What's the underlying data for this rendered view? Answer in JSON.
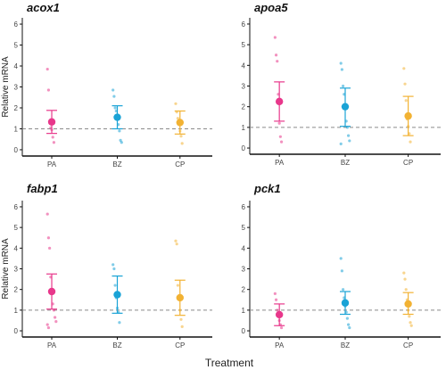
{
  "x_axis_label": "Treatment",
  "colors": {
    "PA": "#e8378b",
    "BZ": "#1aa3d6",
    "CP": "#f2b233",
    "reference_line": "#8a8a8a",
    "axis": "#111111"
  },
  "chart_data": [
    {
      "type": "scatter",
      "title": "acox1",
      "xlabel": "",
      "ylabel": "Relative mRNA",
      "categories": [
        "PA",
        "BZ",
        "CP"
      ],
      "ylim": [
        -0.3,
        6.3
      ],
      "yticks": [
        0,
        1,
        2,
        3,
        4,
        5,
        6
      ],
      "reference_line": 1,
      "grid": false,
      "series": [
        {
          "category": "PA",
          "mean": 1.33,
          "lower": 0.78,
          "upper": 1.88,
          "points": [
            3.85,
            2.85,
            1.35,
            1.05,
            0.95,
            0.6,
            0.35
          ]
        },
        {
          "category": "BZ",
          "mean": 1.55,
          "lower": 1.0,
          "upper": 2.1,
          "points": [
            2.85,
            2.55,
            2.0,
            1.85,
            1.55,
            1.2,
            0.9,
            0.45,
            0.35
          ]
        },
        {
          "category": "CP",
          "mean": 1.3,
          "lower": 0.75,
          "upper": 1.85,
          "points": [
            2.2,
            1.8,
            1.5,
            1.2,
            0.9,
            0.65,
            0.3
          ]
        }
      ]
    },
    {
      "type": "scatter",
      "title": "apoa5",
      "xlabel": "",
      "ylabel": "",
      "categories": [
        "PA",
        "BZ",
        "CP"
      ],
      "ylim": [
        -0.3,
        6.3
      ],
      "yticks": [
        0,
        1,
        2,
        3,
        4,
        5,
        6
      ],
      "reference_line": 1,
      "grid": false,
      "series": [
        {
          "category": "PA",
          "mean": 2.25,
          "lower": 1.3,
          "upper": 3.2,
          "points": [
            5.35,
            4.5,
            4.2,
            2.6,
            1.2,
            0.55,
            0.3
          ]
        },
        {
          "category": "BZ",
          "mean": 2.0,
          "lower": 1.05,
          "upper": 2.9,
          "points": [
            4.1,
            3.8,
            3.0,
            2.6,
            2.1,
            1.3,
            1.0,
            0.6,
            0.35,
            0.2
          ]
        },
        {
          "category": "CP",
          "mean": 1.55,
          "lower": 0.6,
          "upper": 2.5,
          "points": [
            3.85,
            3.1,
            2.3,
            1.4,
            1.05,
            0.7,
            0.3
          ]
        }
      ]
    },
    {
      "type": "scatter",
      "title": "fabp1",
      "xlabel": "",
      "ylabel": "Relative mRNA",
      "categories": [
        "PA",
        "BZ",
        "CP"
      ],
      "ylim": [
        -0.3,
        6.3
      ],
      "yticks": [
        0,
        1,
        2,
        3,
        4,
        5,
        6
      ],
      "reference_line": 1,
      "grid": false,
      "series": [
        {
          "category": "PA",
          "mean": 1.9,
          "lower": 1.05,
          "upper": 2.75,
          "points": [
            5.65,
            4.5,
            4.0,
            2.6,
            1.9,
            1.3,
            1.0,
            0.65,
            0.45,
            0.3,
            0.15
          ]
        },
        {
          "category": "BZ",
          "mean": 1.75,
          "lower": 0.85,
          "upper": 2.65,
          "points": [
            3.2,
            3.0,
            2.2,
            1.6,
            1.1,
            0.9,
            0.4
          ]
        },
        {
          "category": "CP",
          "mean": 1.6,
          "lower": 0.75,
          "upper": 2.45,
          "points": [
            4.35,
            4.2,
            2.2,
            1.6,
            1.0,
            0.55,
            0.2
          ]
        }
      ]
    },
    {
      "type": "scatter",
      "title": "pck1",
      "xlabel": "",
      "ylabel": "",
      "categories": [
        "PA",
        "BZ",
        "CP"
      ],
      "ylim": [
        -0.3,
        6.3
      ],
      "yticks": [
        0,
        1,
        2,
        3,
        4,
        5,
        6
      ],
      "reference_line": 1,
      "grid": false,
      "series": [
        {
          "category": "PA",
          "mean": 0.78,
          "lower": 0.25,
          "upper": 1.3,
          "points": [
            1.8,
            1.5,
            1.0,
            0.75,
            0.5,
            0.3,
            0.15
          ]
        },
        {
          "category": "BZ",
          "mean": 1.35,
          "lower": 0.8,
          "upper": 1.9,
          "points": [
            3.5,
            2.9,
            2.0,
            1.6,
            1.2,
            0.9,
            0.6,
            0.3,
            0.15
          ]
        },
        {
          "category": "CP",
          "mean": 1.3,
          "lower": 0.8,
          "upper": 1.85,
          "points": [
            2.8,
            2.5,
            2.0,
            1.5,
            1.0,
            0.7,
            0.4,
            0.25
          ]
        }
      ]
    }
  ]
}
